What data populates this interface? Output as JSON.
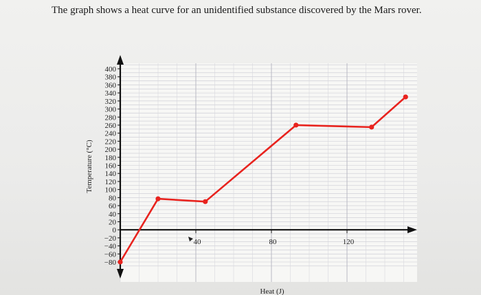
{
  "question_text": "The graph shows a heat curve for an unidentified substance discovered by the Mars rover.",
  "chart_data": {
    "type": "line",
    "title": "",
    "xlabel": "Heat (J)",
    "ylabel": "Temperature (°C)",
    "xlim": [
      0,
      150
    ],
    "ylim": [
      -90,
      420
    ],
    "x_ticks": [
      40,
      80,
      120
    ],
    "y_ticks": [
      400,
      380,
      360,
      340,
      320,
      300,
      280,
      260,
      240,
      220,
      200,
      180,
      160,
      140,
      120,
      100,
      80,
      60,
      40,
      20,
      0,
      -20,
      -40,
      -60,
      -80
    ],
    "grid": true,
    "line_color": "#e8231e",
    "series": [
      {
        "x": [
          0,
          20,
          45,
          93,
          133,
          151
        ],
        "y": [
          -80,
          77,
          70,
          260,
          255,
          330
        ]
      }
    ]
  }
}
